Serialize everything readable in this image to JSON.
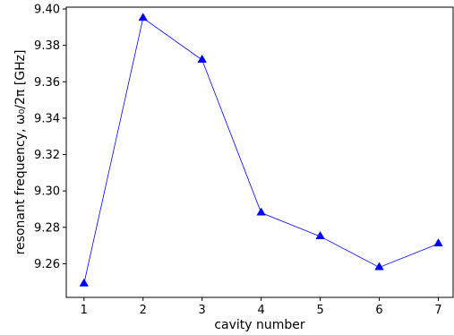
{
  "chart_data": {
    "type": "line",
    "title": "",
    "xlabel": "cavity number",
    "ylabel": "resonant frequency, ω₀/2π [GHz]",
    "x": [
      1,
      2,
      3,
      4,
      5,
      6,
      7
    ],
    "xticks": [
      "1",
      "2",
      "3",
      "4",
      "5",
      "6",
      "7"
    ],
    "yticks": [
      "9.26",
      "9.28",
      "9.30",
      "9.32",
      "9.34",
      "9.36",
      "9.38",
      "9.40"
    ],
    "xlim": [
      0.7,
      7.25
    ],
    "ylim": [
      9.2415,
      9.401
    ],
    "grid": false,
    "series": [
      {
        "values": [
          9.249,
          9.395,
          9.372,
          9.288,
          9.275,
          9.258,
          9.271
        ],
        "color": "#0000ff",
        "marker": "triangle-up"
      }
    ]
  }
}
